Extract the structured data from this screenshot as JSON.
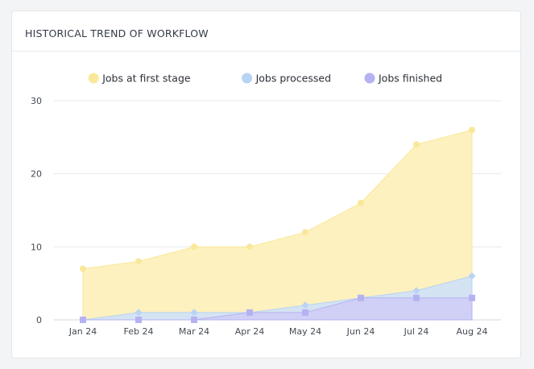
{
  "card": {
    "title": "HISTORICAL TREND OF WORKFLOW"
  },
  "chart_data": {
    "type": "area",
    "title": "HISTORICAL TREND OF WORKFLOW",
    "xlabel": "",
    "ylabel": "",
    "categories": [
      "Jan 24",
      "Feb 24",
      "Mar 24",
      "Apr 24",
      "May 24",
      "Jun 24",
      "Jul 24",
      "Aug 24"
    ],
    "ylim": [
      0,
      30
    ],
    "yticks": [
      0,
      10,
      20,
      30
    ],
    "grid": true,
    "legend_position": "top-center",
    "series": [
      {
        "name": "Jobs at first stage",
        "values": [
          7,
          8,
          10,
          10,
          12,
          16,
          24,
          26
        ],
        "color": "#fdf0b8",
        "marker_color": "#f9e89a",
        "marker": "circle"
      },
      {
        "name": "Jobs processed",
        "values": [
          0,
          1,
          1,
          1,
          2,
          3,
          4,
          6
        ],
        "color": "#cfe1f7",
        "marker_color": "#b8d4f4",
        "marker": "diamond"
      },
      {
        "name": "Jobs finished",
        "values": [
          0,
          0,
          0,
          1,
          1,
          3,
          3,
          3
        ],
        "color": "#cfcdf6",
        "marker_color": "#b5b2f2",
        "marker": "square"
      }
    ]
  }
}
